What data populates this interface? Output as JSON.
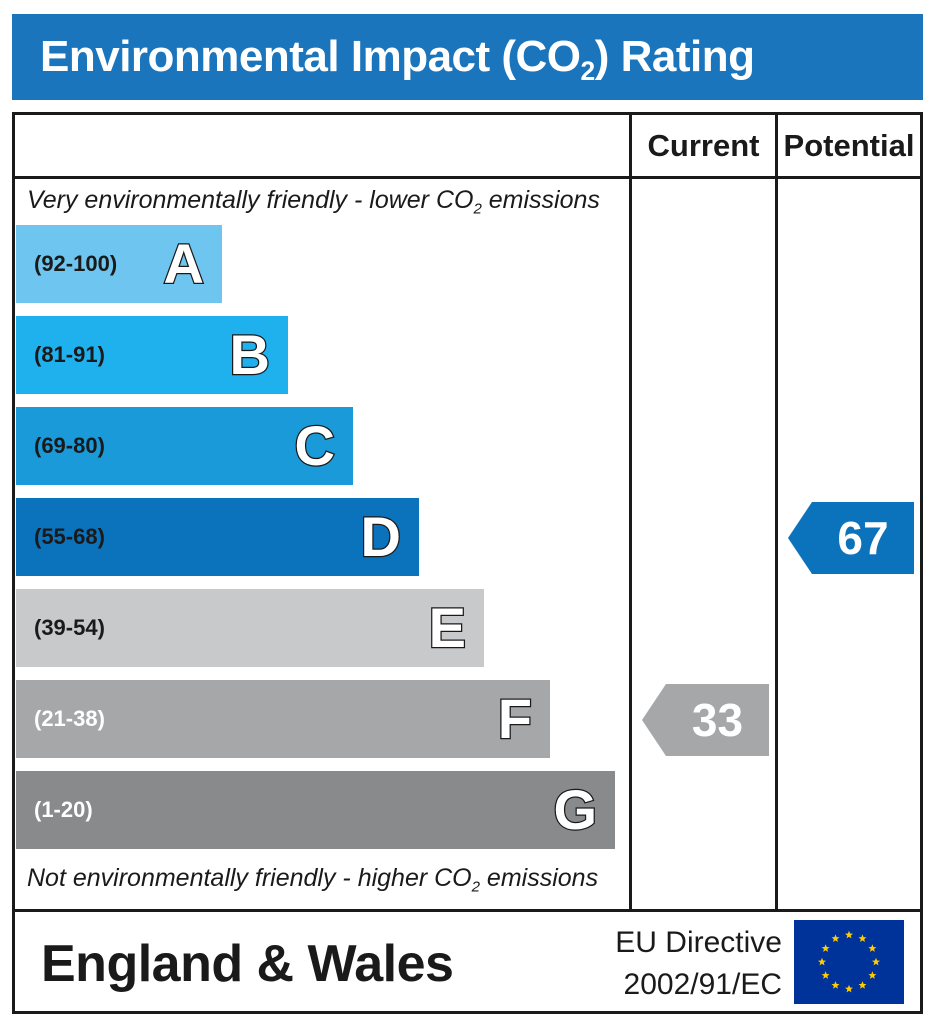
{
  "header": {
    "title_main": "Environmental Impact (CO",
    "title_sub": "2",
    "title_tail": ") Rating"
  },
  "columns": {
    "current": "Current",
    "potential": "Potential"
  },
  "notes": {
    "top_main": "Very environmentally friendly - lower CO",
    "top_sub": "2",
    "top_tail": " emissions",
    "bottom_main": "Not environmentally friendly - higher CO",
    "bottom_sub": "2",
    "bottom_tail": " emissions"
  },
  "footer": {
    "region": "England & Wales",
    "directive_line1": "EU Directive",
    "directive_line2": "2002/91/EC",
    "flag_icon": "eu-flag-icon"
  },
  "chart_data": {
    "type": "bar",
    "bands": [
      {
        "letter": "A",
        "range": "(92-100)",
        "color": "#6ec6f0",
        "text_color": "#1a1a1a"
      },
      {
        "letter": "B",
        "range": "(81-91)",
        "color": "#1fb0ee",
        "text_color": "#1a1a1a"
      },
      {
        "letter": "C",
        "range": "(69-80)",
        "color": "#1a9ad8",
        "text_color": "#1a1a1a"
      },
      {
        "letter": "D",
        "range": "(55-68)",
        "color": "#0b72bc",
        "text_color": "#1a1a1a"
      },
      {
        "letter": "E",
        "range": "(39-54)",
        "color": "#c8c9cb",
        "text_color": "#1a1a1a"
      },
      {
        "letter": "F",
        "range": "(21-38)",
        "color": "#a6a7a9",
        "text_color": "#ffffff"
      },
      {
        "letter": "G",
        "range": "(1-20)",
        "color": "#888a8c",
        "text_color": "#ffffff"
      }
    ],
    "current": {
      "value": 33,
      "band": "F",
      "color": "#a6a7a9"
    },
    "potential": {
      "value": 67,
      "band": "D",
      "color": "#0b72bc"
    }
  }
}
